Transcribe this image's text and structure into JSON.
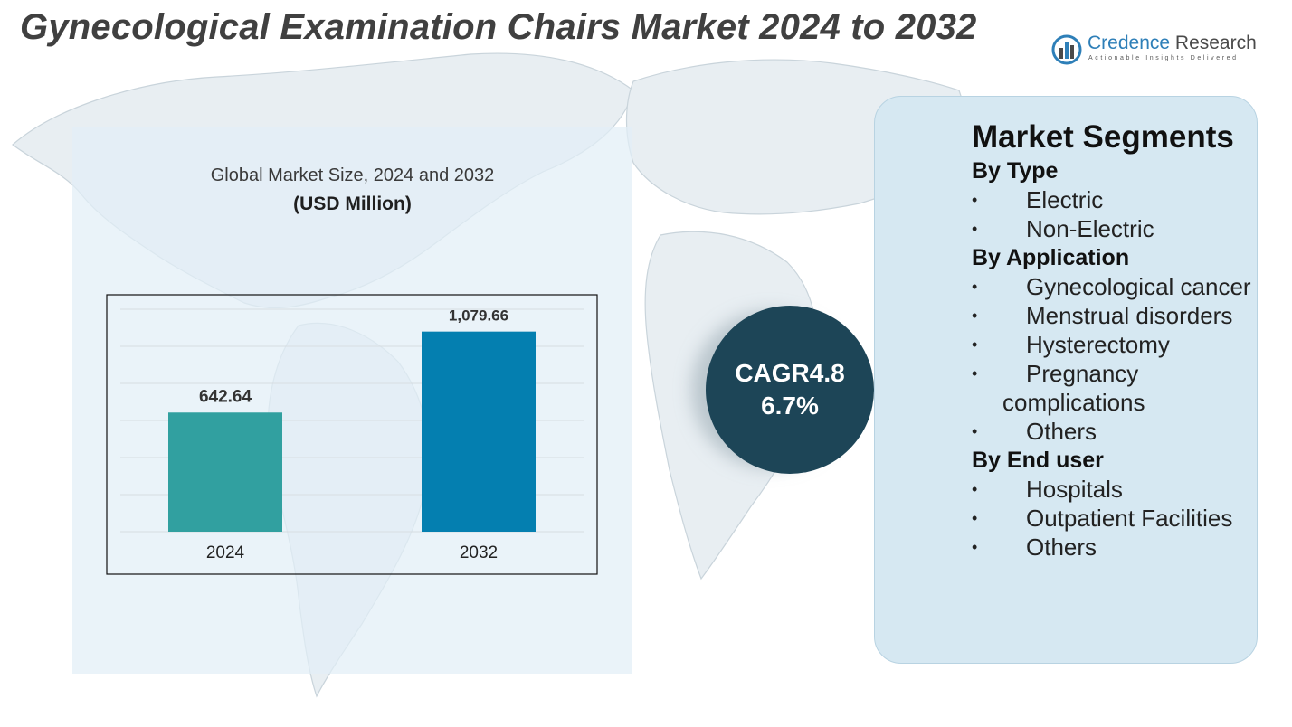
{
  "title": "Gynecological Examination Chairs Market 2024 to 2032",
  "logo": {
    "name_part1": "Credence",
    "name_part2": "Research",
    "tagline": "Actionable Insights Delivered"
  },
  "chart": {
    "title": "Global Market Size, 2024 and 2032",
    "unit": "(USD Million)"
  },
  "chart_data": {
    "type": "bar",
    "title": "Global Market Size, 2024 and 2032",
    "ylabel": "",
    "unit": "(USD Million)",
    "categories": [
      "2024",
      "2032"
    ],
    "values": [
      642.64,
      1079.66
    ],
    "value_labels": [
      "642.64",
      "1,079.66"
    ],
    "colors": [
      "#31a0a0",
      "#047fb0"
    ],
    "ylim": [
      0,
      1200
    ],
    "grid": true,
    "legend": "none"
  },
  "cagr": {
    "line1": "CAGR4.8",
    "line2": "6.7%"
  },
  "segments": {
    "heading": "Market Segments",
    "groups": [
      {
        "title": "By Type",
        "items": [
          "Electric",
          "Non-Electric"
        ]
      },
      {
        "title": "By Application",
        "items": [
          "Gynecological cancer",
          "Menstrual disorders",
          "Hysterectomy",
          "Pregnancy complications",
          "Others"
        ]
      },
      {
        "title": "By End user",
        "items": [
          "Hospitals",
          "Outpatient Facilities",
          "Others"
        ]
      }
    ]
  },
  "colors": {
    "title": "#404040",
    "brand_blue": "#2e7fb8",
    "cagr_circle": "#1d4557",
    "segment_panel": "#d6e8f2",
    "chart_panel": "#e2eef6"
  }
}
